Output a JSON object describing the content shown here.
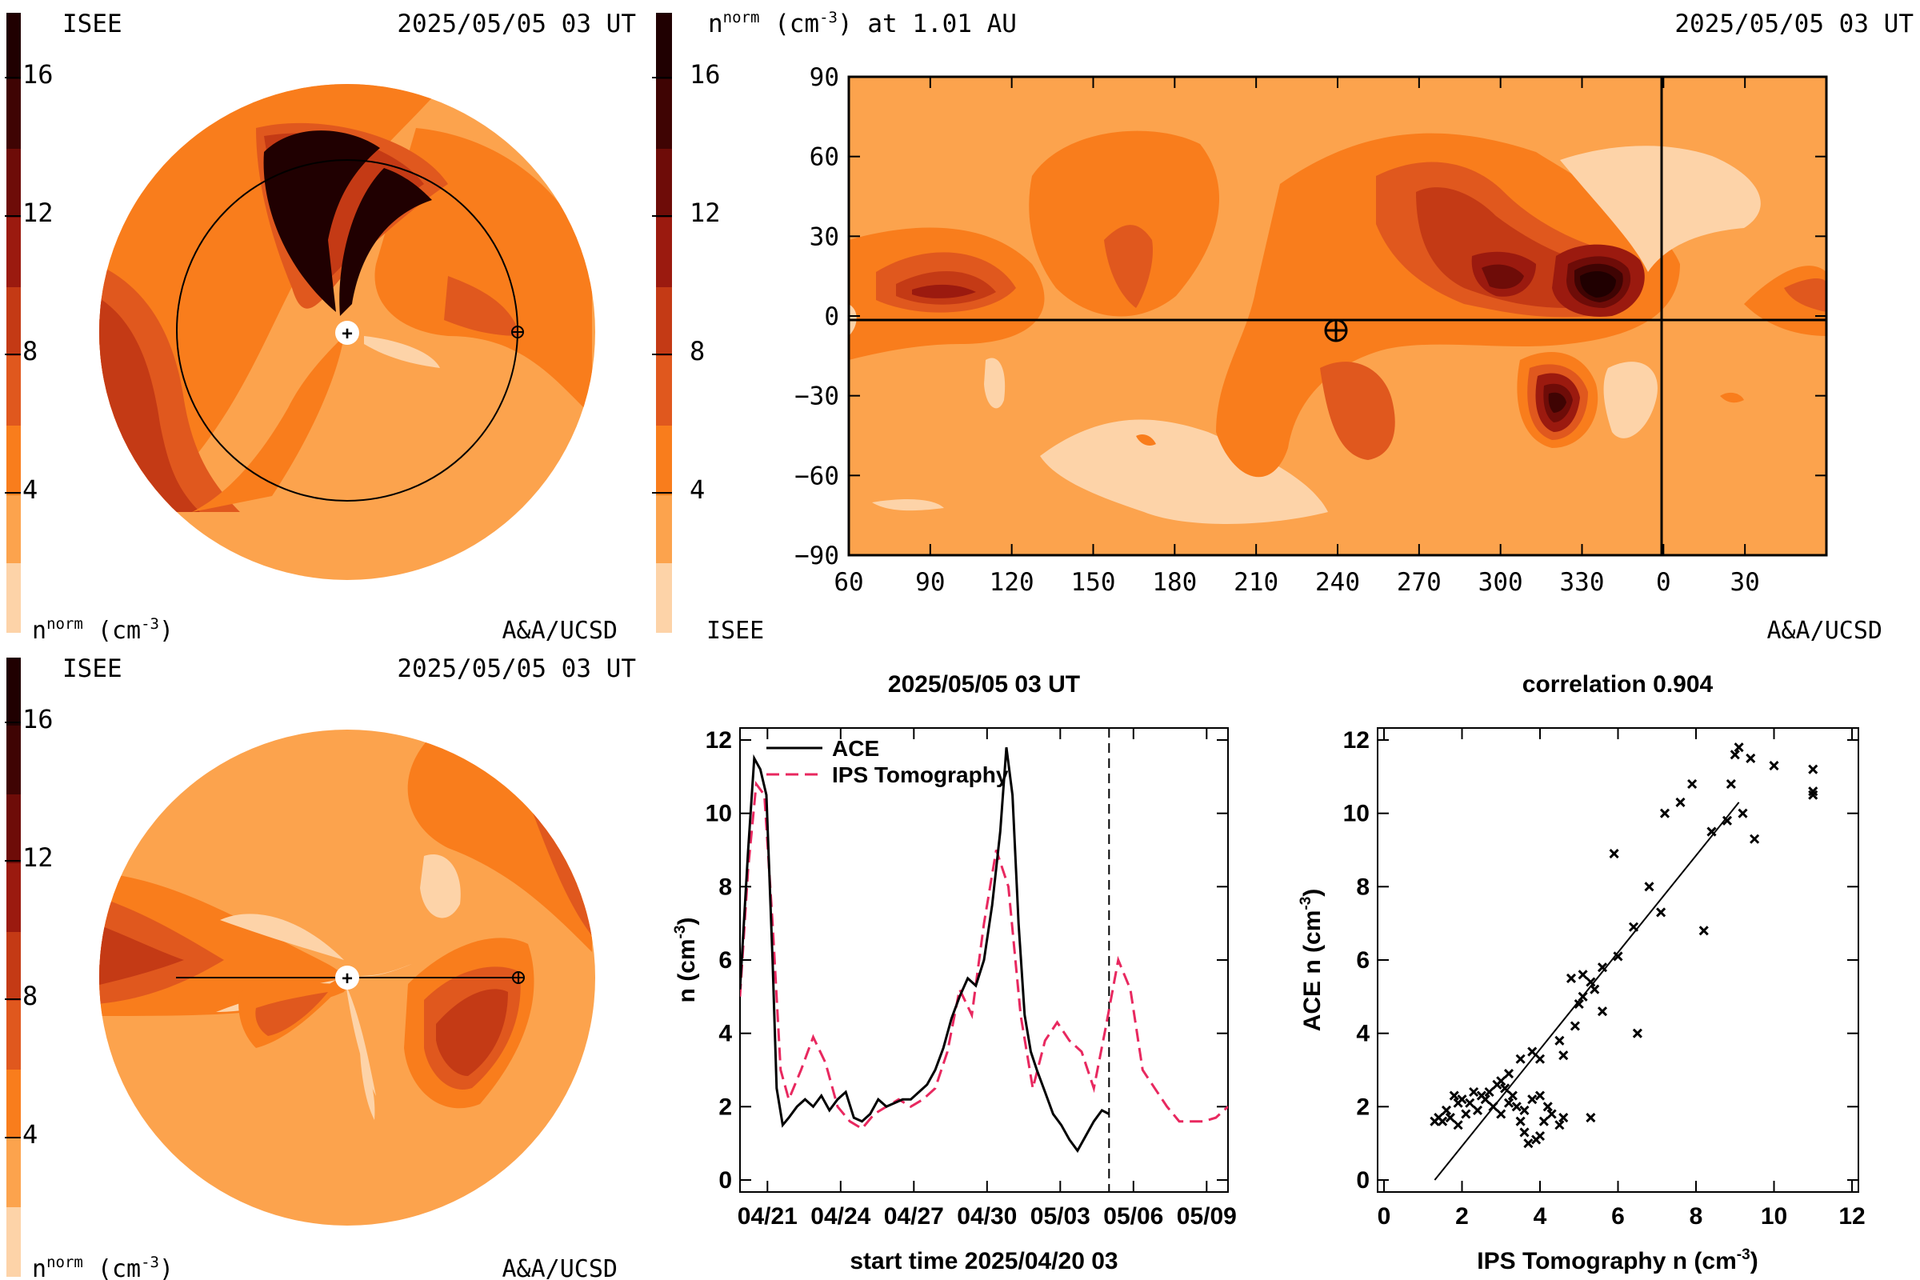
{
  "colors": {
    "levels": [
      "#fdd3a8",
      "#fca34d",
      "#f97d1c",
      "#e0581e",
      "#c43a15",
      "#9b1a0f",
      "#6e0c08",
      "#3f0403",
      "#200001"
    ],
    "equator_line": "#000000",
    "tomography_line": "#e8285f",
    "ace_line": "#000000"
  },
  "panels": {
    "polar_top": {
      "left_header": "ISEE",
      "right_header": "2025/05/05 03 UT",
      "colorbar_ticks": [
        "16",
        "12",
        "8",
        "4"
      ],
      "colorbar_label_base": "n",
      "colorbar_label_sup": "norm",
      "colorbar_label_unit": "(cm",
      "colorbar_label_exp": "-3",
      "colorbar_label_close": ")",
      "credit": "A&A/UCSD"
    },
    "polar_bottom": {
      "left_header": "ISEE",
      "right_header": "2025/05/05 03 UT",
      "colorbar_ticks": [
        "16",
        "12",
        "8",
        "4"
      ],
      "colorbar_label_base": "n",
      "colorbar_label_sup": "norm",
      "colorbar_label_unit": "(cm",
      "colorbar_label_exp": "-3",
      "colorbar_label_close": ")",
      "credit": "A&A/UCSD"
    },
    "map": {
      "title_base": "n",
      "title_sup": "norm",
      "title_unit": "(cm",
      "title_exp": "-3",
      "title_rest": ") at 1.01 AU",
      "right_header": "2025/05/05 03 UT",
      "colorbar_ticks": [
        "16",
        "12",
        "8",
        "4"
      ],
      "colorbar_bottom_label": "ISEE",
      "credit": "A&A/UCSD",
      "y_ticks": [
        "90",
        "60",
        "30",
        "0",
        "−30",
        "−60",
        "−90"
      ],
      "x_ticks": [
        "90",
        "120",
        "150",
        "180",
        "210",
        "240",
        "270",
        "300",
        "330",
        "0",
        "30",
        "60"
      ]
    },
    "timeseries": {
      "title": "2025/05/05 03 UT",
      "xlabel": "start time 2025/04/20 03",
      "ylabel_base": "n (cm",
      "ylabel_exp": "-3",
      "ylabel_close": ")",
      "legend": [
        "ACE",
        "IPS Tomography"
      ]
    },
    "scatter": {
      "title": "correlation 0.904",
      "xlabel_base": "IPS Tomography n (cm",
      "xlabel_exp": "-3",
      "xlabel_close": ")",
      "ylabel_base": "ACE n (cm",
      "ylabel_exp": "-3",
      "ylabel_close": ")"
    }
  },
  "chart_data": [
    {
      "type": "heatmap",
      "title": "n^norm (cm^-3) at 1.01 AU",
      "xlabel": "",
      "ylabel": "",
      "x_ticks": [
        90,
        120,
        150,
        180,
        210,
        240,
        270,
        300,
        330,
        0,
        30,
        60
      ],
      "y_ticks": [
        90,
        60,
        30,
        0,
        -30,
        -60,
        -90
      ],
      "xlim": [
        60,
        420
      ],
      "ylim": [
        -90,
        90
      ],
      "colorbar_ticks": [
        16,
        12,
        8,
        4
      ],
      "earth_position": {
        "longitude": 240,
        "latitude": -3
      },
      "features": [
        {
          "longitude": 93,
          "latitude": 10,
          "peak": 10
        },
        {
          "longitude": 165,
          "latitude": 12,
          "peak": 6
        },
        {
          "longitude": 290,
          "latitude": 15,
          "peak": 10
        },
        {
          "longitude": 304,
          "latitude": 11,
          "peak": 13
        },
        {
          "longitude": 340,
          "latitude": 10,
          "peak": 17
        },
        {
          "longitude": 336,
          "latitude": -30,
          "peak": 12
        },
        {
          "longitude": 248,
          "latitude": -35,
          "peak": 7
        }
      ]
    },
    {
      "type": "line",
      "title": "2025/05/05 03 UT",
      "xlabel": "start time 2025/04/20 03",
      "ylabel": "n (cm^-3)",
      "x_ticks": [
        "04/21",
        "04/24",
        "04/27",
        "04/30",
        "05/03",
        "05/06",
        "05/09"
      ],
      "y_ticks": [
        0,
        2,
        4,
        6,
        8,
        10,
        12
      ],
      "xlim": [
        "2025-04-20",
        "2025-05-10"
      ],
      "ylim": [
        0,
        12
      ],
      "vline": "2025-05-05 03:00",
      "series": [
        {
          "name": "ACE",
          "x": [
            "2025-04-20 00:00",
            "2025-04-20 08:00",
            "2025-04-20 14:00",
            "2025-04-20 20:00",
            "2025-04-21 02:00",
            "2025-04-21 08:00",
            "2025-04-21 12:00",
            "2025-04-21 18:00",
            "2025-04-22 00:00",
            "2025-04-22 08:00",
            "2025-04-22 16:00",
            "2025-04-23 00:00",
            "2025-04-23 08:00",
            "2025-04-23 16:00",
            "2025-04-24 00:00",
            "2025-04-24 08:00",
            "2025-04-24 16:00",
            "2025-04-25 00:00",
            "2025-04-25 08:00",
            "2025-04-25 16:00",
            "2025-04-26 00:00",
            "2025-04-26 08:00",
            "2025-04-26 16:00",
            "2025-04-27 00:00",
            "2025-04-27 08:00",
            "2025-04-27 16:00",
            "2025-04-28 00:00",
            "2025-04-28 08:00",
            "2025-04-28 16:00",
            "2025-04-29 00:00",
            "2025-04-29 08:00",
            "2025-04-29 16:00",
            "2025-04-30 00:00",
            "2025-04-30 08:00",
            "2025-04-30 16:00",
            "2025-04-30 22:00",
            "2025-05-01 04:00",
            "2025-05-01 10:00",
            "2025-05-01 16:00",
            "2025-05-01 22:00",
            "2025-05-02 04:00",
            "2025-05-02 12:00",
            "2025-05-02 20:00",
            "2025-05-03 04:00",
            "2025-05-03 12:00",
            "2025-05-03 20:00",
            "2025-05-04 04:00",
            "2025-05-04 12:00",
            "2025-05-04 20:00",
            "2025-05-05 03:00"
          ],
          "y": [
            5.2,
            9.0,
            11.5,
            11.2,
            10.5,
            6.0,
            2.5,
            1.5,
            1.7,
            2.0,
            2.2,
            2.0,
            2.3,
            1.9,
            2.2,
            2.4,
            1.7,
            1.6,
            1.8,
            2.2,
            2.0,
            2.1,
            2.2,
            2.2,
            2.4,
            2.6,
            3.0,
            3.6,
            4.4,
            5.0,
            5.5,
            5.3,
            6.0,
            7.5,
            9.5,
            11.8,
            10.5,
            7.0,
            4.5,
            3.5,
            3.0,
            2.4,
            1.8,
            1.5,
            1.1,
            0.8,
            1.2,
            1.6,
            1.9,
            1.8
          ]
        },
        {
          "name": "IPS Tomography",
          "x": [
            "2025-04-20 00:00",
            "2025-04-20 08:00",
            "2025-04-20 16:00",
            "2025-04-21 00:00",
            "2025-04-21 08:00",
            "2025-04-21 16:00",
            "2025-04-22 00:00",
            "2025-04-22 12:00",
            "2025-04-23 00:00",
            "2025-04-23 12:00",
            "2025-04-24 00:00",
            "2025-04-24 12:00",
            "2025-04-25 00:00",
            "2025-04-25 12:00",
            "2025-04-26 00:00",
            "2025-04-26 12:00",
            "2025-04-27 00:00",
            "2025-04-27 12:00",
            "2025-04-28 00:00",
            "2025-04-28 12:00",
            "2025-04-29 00:00",
            "2025-04-29 12:00",
            "2025-04-30 00:00",
            "2025-04-30 12:00",
            "2025-05-01 00:00",
            "2025-05-01 12:00",
            "2025-05-02 00:00",
            "2025-05-02 12:00",
            "2025-05-03 00:00",
            "2025-05-03 12:00",
            "2025-05-04 00:00",
            "2025-05-04 12:00",
            "2025-05-05 00:00",
            "2025-05-05 12:00",
            "2025-05-06 00:00",
            "2025-05-06 12:00",
            "2025-05-07 00:00",
            "2025-05-07 12:00",
            "2025-05-08 00:00",
            "2025-05-08 12:00",
            "2025-05-09 00:00",
            "2025-05-09 12:00",
            "2025-05-10 00:00"
          ],
          "y": [
            5.0,
            8.5,
            10.8,
            10.5,
            7.0,
            3.0,
            2.2,
            3.0,
            3.9,
            3.2,
            2.0,
            1.6,
            1.4,
            1.8,
            2.0,
            2.2,
            2.0,
            2.2,
            2.5,
            3.5,
            5.2,
            4.5,
            7.0,
            9.0,
            8.0,
            4.5,
            2.5,
            3.8,
            4.3,
            3.8,
            3.5,
            2.5,
            4.2,
            6.0,
            5.2,
            3.0,
            2.5,
            2.0,
            1.6,
            1.6,
            1.6,
            1.7,
            2.0
          ]
        }
      ]
    },
    {
      "type": "scatter",
      "title": "correlation 0.904",
      "xlabel": "IPS Tomography n (cm^-3)",
      "ylabel": "ACE n (cm^-3)",
      "x_ticks": [
        0,
        2,
        4,
        6,
        8,
        10,
        12
      ],
      "y_ticks": [
        0,
        2,
        4,
        6,
        8,
        10,
        12
      ],
      "xlim": [
        0,
        12
      ],
      "ylim": [
        0,
        12
      ],
      "fit_line": [
        [
          1.3,
          0.0
        ],
        [
          9.1,
          10.3
        ]
      ],
      "points": [
        [
          1.5,
          1.6
        ],
        [
          1.7,
          1.7
        ],
        [
          1.9,
          1.5
        ],
        [
          2.0,
          2.2
        ],
        [
          2.1,
          1.8
        ],
        [
          2.2,
          2.1
        ],
        [
          2.3,
          2.4
        ],
        [
          2.4,
          1.9
        ],
        [
          2.5,
          2.3
        ],
        [
          2.6,
          2.2
        ],
        [
          2.8,
          2.0
        ],
        [
          3.0,
          1.8
        ],
        [
          3.2,
          2.1
        ],
        [
          3.4,
          2.0
        ],
        [
          3.5,
          1.6
        ],
        [
          3.6,
          1.3
        ],
        [
          3.7,
          1.0
        ],
        [
          3.9,
          1.1
        ],
        [
          4.0,
          1.2
        ],
        [
          4.1,
          1.6
        ],
        [
          4.3,
          1.8
        ],
        [
          4.5,
          1.5
        ],
        [
          4.6,
          1.7
        ],
        [
          4.2,
          2.0
        ],
        [
          4.0,
          2.3
        ],
        [
          3.8,
          2.2
        ],
        [
          3.6,
          1.9
        ],
        [
          3.3,
          2.3
        ],
        [
          3.1,
          2.5
        ],
        [
          2.9,
          2.6
        ],
        [
          2.7,
          2.4
        ],
        [
          1.6,
          1.9
        ],
        [
          1.8,
          2.3
        ],
        [
          1.9,
          2.1
        ],
        [
          1.3,
          1.6
        ],
        [
          1.4,
          1.7
        ],
        [
          3.2,
          2.9
        ],
        [
          3.0,
          2.7
        ],
        [
          3.5,
          3.3
        ],
        [
          3.8,
          3.5
        ],
        [
          4.0,
          3.3
        ],
        [
          4.5,
          3.8
        ],
        [
          4.6,
          3.4
        ],
        [
          4.9,
          4.2
        ],
        [
          5.0,
          4.8
        ],
        [
          5.1,
          5.0
        ],
        [
          4.8,
          5.5
        ],
        [
          5.1,
          5.6
        ],
        [
          5.3,
          5.4
        ],
        [
          5.4,
          5.2
        ],
        [
          5.6,
          5.8
        ],
        [
          5.6,
          4.6
        ],
        [
          5.3,
          1.7
        ],
        [
          6.0,
          6.1
        ],
        [
          6.4,
          6.9
        ],
        [
          6.5,
          4.0
        ],
        [
          6.8,
          8.0
        ],
        [
          7.1,
          7.3
        ],
        [
          5.9,
          8.9
        ],
        [
          7.2,
          10.0
        ],
        [
          7.6,
          10.3
        ],
        [
          7.9,
          10.8
        ],
        [
          8.2,
          6.8
        ],
        [
          8.4,
          9.5
        ],
        [
          8.9,
          10.8
        ],
        [
          9.0,
          11.6
        ],
        [
          9.1,
          11.8
        ],
        [
          9.4,
          11.5
        ],
        [
          9.5,
          9.3
        ],
        [
          10.0,
          11.3
        ],
        [
          11.0,
          11.2
        ],
        [
          11.0,
          10.6
        ],
        [
          11.0,
          10.5
        ],
        [
          9.2,
          10.0
        ],
        [
          8.8,
          9.8
        ]
      ]
    }
  ]
}
